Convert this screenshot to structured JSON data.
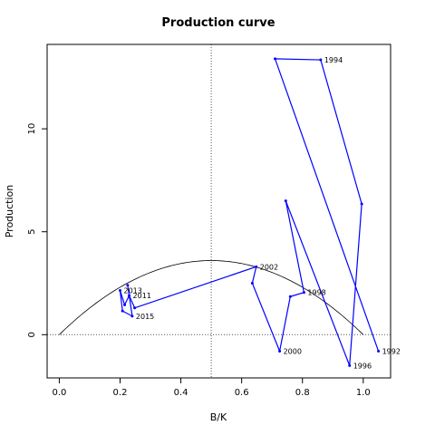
{
  "chart_data": {
    "type": "line",
    "title": "Production curve",
    "xlabel": "B/K",
    "ylabel": "Production",
    "xlim": [
      -0.04,
      1.09
    ],
    "ylim": [
      -2.1,
      14.1
    ],
    "xticks": [
      0.0,
      0.2,
      0.4,
      0.6,
      0.8,
      1.0
    ],
    "xtick_labels": [
      "0.0",
      "0.2",
      "0.4",
      "0.6",
      "0.8",
      "1.0"
    ],
    "yticks": [
      0,
      5,
      10
    ],
    "ytick_labels": [
      "0",
      "5",
      "10"
    ],
    "reference_lines": {
      "vertical_x": 0.5,
      "horizontal_y": 0
    },
    "production_curve": {
      "type": "parabola",
      "x_range": [
        0,
        1
      ],
      "peak_x": 0.5,
      "peak_y": 3.6
    },
    "series": [
      {
        "color": "#0000ff",
        "points": [
          {
            "x": 1.05,
            "y": -0.8,
            "label": "1992"
          },
          {
            "x": 0.71,
            "y": 13.4,
            "label": ""
          },
          {
            "x": 0.86,
            "y": 13.35,
            "label": "1994"
          },
          {
            "x": 0.995,
            "y": 6.35,
            "label": ""
          },
          {
            "x": 0.955,
            "y": -1.5,
            "label": "1996"
          },
          {
            "x": 0.745,
            "y": 6.5,
            "label": ""
          },
          {
            "x": 0.805,
            "y": 2.05,
            "label": "1998"
          },
          {
            "x": 0.76,
            "y": 1.85,
            "label": ""
          },
          {
            "x": 0.725,
            "y": -0.8,
            "label": "2000"
          },
          {
            "x": 0.635,
            "y": 2.5,
            "label": ""
          },
          {
            "x": 0.648,
            "y": 3.3,
            "label": "2002"
          },
          {
            "x": 0.248,
            "y": 1.3,
            "label": ""
          },
          {
            "x": 0.23,
            "y": 1.9,
            "label": "2011"
          },
          {
            "x": 0.215,
            "y": 1.45,
            "label": ""
          },
          {
            "x": 0.2,
            "y": 2.15,
            "label": "2013"
          },
          {
            "x": 0.208,
            "y": 1.15,
            "label": ""
          },
          {
            "x": 0.24,
            "y": 0.9,
            "label": "2015"
          },
          {
            "x": 0.225,
            "y": 2.4,
            "label": ""
          }
        ]
      }
    ]
  }
}
